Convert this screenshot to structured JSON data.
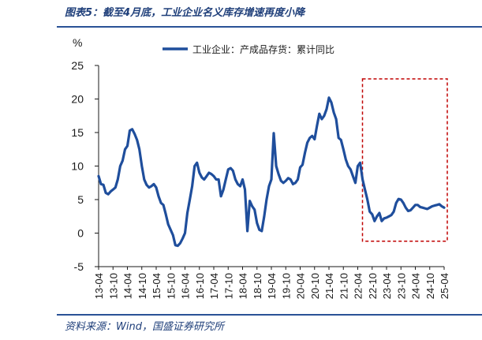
{
  "header": {
    "figure_title": "图表5：截至4月底，工业企业名义库存增速再度小降"
  },
  "footer": {
    "source": "资料来源：Wind，国盛证券研究所"
  },
  "chart_data": {
    "type": "line",
    "title": "",
    "ylabel": "%",
    "xlabel": "",
    "ylim": [
      -5,
      25
    ],
    "yticks": [
      -5,
      0,
      5,
      10,
      15,
      20,
      25
    ],
    "xtick_labels": [
      "13-04",
      "13-10",
      "14-04",
      "14-10",
      "15-04",
      "15-10",
      "16-04",
      "16-10",
      "17-04",
      "17-10",
      "18-04",
      "18-10",
      "19-04",
      "19-10",
      "20-04",
      "20-10",
      "21-04",
      "21-10",
      "22-04",
      "22-10",
      "23-04",
      "23-10",
      "24-04",
      "24-10",
      "25-04"
    ],
    "legend_position": "top-center",
    "grid": false,
    "highlight_box": {
      "x_start": "22-04",
      "x_end": "25-04",
      "y_min": -1.2,
      "y_max": 23,
      "color": "#c00000",
      "style": "dashed"
    },
    "series": [
      {
        "name": "工业企业：产成品存货：累计同比",
        "color": "#1f4e9c",
        "points": [
          [
            "13-04",
            8.5
          ],
          [
            "13-05",
            7.3
          ],
          [
            "13-06",
            7.2
          ],
          [
            "13-07",
            6.0
          ],
          [
            "13-08",
            5.8
          ],
          [
            "13-09",
            6.2
          ],
          [
            "13-10",
            6.5
          ],
          [
            "13-11",
            6.8
          ],
          [
            "13-12",
            8.0
          ],
          [
            "14-01",
            10.0
          ],
          [
            "14-02",
            10.8
          ],
          [
            "14-03",
            12.5
          ],
          [
            "14-04",
            13.0
          ],
          [
            "14-05",
            15.3
          ],
          [
            "14-06",
            15.5
          ],
          [
            "14-07",
            14.8
          ],
          [
            "14-08",
            13.9
          ],
          [
            "14-09",
            12.5
          ],
          [
            "14-10",
            10.0
          ],
          [
            "14-11",
            8.0
          ],
          [
            "14-12",
            7.2
          ],
          [
            "15-01",
            6.8
          ],
          [
            "15-02",
            7.0
          ],
          [
            "15-03",
            7.3
          ],
          [
            "15-04",
            6.8
          ],
          [
            "15-05",
            5.5
          ],
          [
            "15-06",
            4.5
          ],
          [
            "15-07",
            4.2
          ],
          [
            "15-08",
            2.8
          ],
          [
            "15-09",
            1.3
          ],
          [
            "15-10",
            0.5
          ],
          [
            "15-11",
            -0.3
          ],
          [
            "15-12",
            -1.8
          ],
          [
            "16-01",
            -1.9
          ],
          [
            "16-02",
            -1.5
          ],
          [
            "16-03",
            -0.8
          ],
          [
            "16-04",
            0.0
          ],
          [
            "16-05",
            3.0
          ],
          [
            "16-06",
            5.0
          ],
          [
            "16-07",
            7.0
          ],
          [
            "16-08",
            10.0
          ],
          [
            "16-09",
            10.5
          ],
          [
            "16-10",
            9.0
          ],
          [
            "16-11",
            8.3
          ],
          [
            "16-12",
            8.0
          ],
          [
            "17-01",
            8.5
          ],
          [
            "17-02",
            9.0
          ],
          [
            "17-03",
            8.8
          ],
          [
            "17-04",
            8.5
          ],
          [
            "17-05",
            8.0
          ],
          [
            "17-06",
            8.0
          ],
          [
            "17-07",
            5.5
          ],
          [
            "17-08",
            6.5
          ],
          [
            "17-09",
            8.0
          ],
          [
            "17-10",
            9.5
          ],
          [
            "17-11",
            9.7
          ],
          [
            "17-12",
            9.3
          ],
          [
            "18-01",
            8.0
          ],
          [
            "18-02",
            7.3
          ],
          [
            "18-03",
            7.0
          ],
          [
            "18-04",
            8.0
          ],
          [
            "18-05",
            6.5
          ],
          [
            "18-06",
            0.3
          ],
          [
            "18-07",
            4.8
          ],
          [
            "18-08",
            4.0
          ],
          [
            "18-09",
            3.5
          ],
          [
            "18-10",
            1.5
          ],
          [
            "18-11",
            0.5
          ],
          [
            "18-12",
            0.3
          ],
          [
            "19-01",
            2.5
          ],
          [
            "19-02",
            5.0
          ],
          [
            "19-03",
            7.0
          ],
          [
            "19-04",
            8.0
          ],
          [
            "19-05",
            14.9
          ],
          [
            "19-06",
            10.0
          ],
          [
            "19-07",
            8.8
          ],
          [
            "19-08",
            7.8
          ],
          [
            "19-09",
            7.5
          ],
          [
            "19-10",
            7.8
          ],
          [
            "19-11",
            8.2
          ],
          [
            "19-12",
            8.0
          ],
          [
            "20-01",
            7.3
          ],
          [
            "20-02",
            7.5
          ],
          [
            "20-03",
            8.0
          ],
          [
            "20-04",
            9.8
          ],
          [
            "20-05",
            10.2
          ],
          [
            "20-06",
            12.0
          ],
          [
            "20-07",
            13.5
          ],
          [
            "20-08",
            14.2
          ],
          [
            "20-09",
            14.5
          ],
          [
            "20-10",
            14.0
          ],
          [
            "20-11",
            16.0
          ],
          [
            "20-12",
            17.8
          ],
          [
            "21-01",
            17.0
          ],
          [
            "21-02",
            17.5
          ],
          [
            "21-03",
            18.5
          ],
          [
            "21-04",
            20.2
          ],
          [
            "21-05",
            19.5
          ],
          [
            "21-06",
            18.0
          ],
          [
            "21-07",
            17.0
          ],
          [
            "21-08",
            14.2
          ],
          [
            "21-09",
            13.9
          ],
          [
            "21-10",
            12.5
          ],
          [
            "21-11",
            11.0
          ],
          [
            "21-12",
            10.0
          ],
          [
            "22-01",
            9.5
          ],
          [
            "22-02",
            8.5
          ],
          [
            "22-03",
            7.5
          ],
          [
            "22-04",
            10.0
          ],
          [
            "22-05",
            10.5
          ],
          [
            "22-06",
            8.0
          ],
          [
            "22-07",
            6.5
          ],
          [
            "22-08",
            5.0
          ],
          [
            "22-09",
            3.2
          ],
          [
            "22-10",
            2.8
          ],
          [
            "22-11",
            1.8
          ],
          [
            "22-12",
            2.5
          ],
          [
            "23-01",
            3.0
          ],
          [
            "23-02",
            1.8
          ],
          [
            "23-03",
            2.2
          ],
          [
            "23-04",
            2.3
          ],
          [
            "23-05",
            2.5
          ],
          [
            "23-06",
            2.7
          ],
          [
            "23-07",
            3.2
          ],
          [
            "23-08",
            4.5
          ],
          [
            "23-09",
            5.1
          ],
          [
            "23-10",
            5.0
          ],
          [
            "23-11",
            4.5
          ],
          [
            "23-12",
            3.8
          ],
          [
            "24-01",
            3.3
          ],
          [
            "24-02",
            3.4
          ],
          [
            "24-03",
            3.8
          ],
          [
            "24-04",
            4.2
          ],
          [
            "24-05",
            4.2
          ],
          [
            "24-06",
            3.9
          ],
          [
            "24-07",
            3.8
          ],
          [
            "24-08",
            3.7
          ],
          [
            "24-09",
            3.6
          ],
          [
            "24-10",
            3.8
          ],
          [
            "24-11",
            4.0
          ],
          [
            "24-12",
            4.1
          ],
          [
            "25-01",
            4.2
          ],
          [
            "25-02",
            4.3
          ],
          [
            "25-03",
            4.0
          ],
          [
            "25-04",
            3.8
          ]
        ]
      }
    ]
  }
}
